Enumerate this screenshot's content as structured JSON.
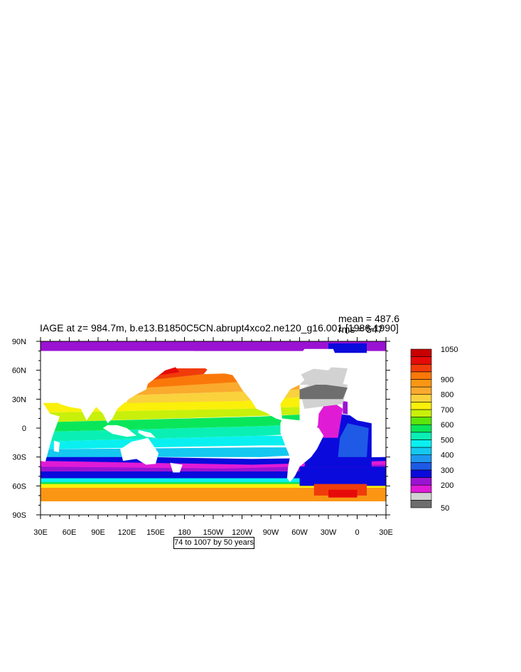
{
  "header": {
    "title": "IAGE at z= 984.7m, b.e13.B1850C5CN.abrupt4xco2.ne120_g16.001 [1986-1990]",
    "mean": "mean = 487.6",
    "rms": "rms = 547"
  },
  "info_label": "74 to 1007 by 50 years",
  "colors": {
    "land": "#ffffff",
    "frame": "#000000"
  },
  "chart_data": {
    "type": "heatmap",
    "title": "IAGE at z= 984.7m, b.e13.B1850C5CN.abrupt4xco2.ne120_g16.001 [1986-1990]",
    "x_ticks": [
      "30E",
      "60E",
      "90E",
      "120E",
      "150E",
      "180",
      "150W",
      "120W",
      "90W",
      "60W",
      "30W",
      "0",
      "30E"
    ],
    "y_ticks": [
      "90N",
      "60N",
      "30N",
      "0",
      "30S",
      "60S",
      "90S"
    ],
    "xlim": [
      30,
      390
    ],
    "ylim": [
      -90,
      90
    ],
    "units": "years",
    "colorbar": {
      "labels": [
        "1050",
        "900",
        "800",
        "700",
        "600",
        "500",
        "400",
        "300",
        "200",
        "50"
      ],
      "levels": [
        50,
        100,
        150,
        200,
        250,
        300,
        350,
        400,
        450,
        500,
        550,
        600,
        650,
        700,
        750,
        800,
        850,
        900,
        950,
        1000,
        1050
      ],
      "colors": [
        "#6e6e6e",
        "#d2d2d2",
        "#e01bd6",
        "#9b13d2",
        "#0a0adc",
        "#1e5ae6",
        "#1e96f0",
        "#14c8f0",
        "#0af0f0",
        "#0af0b4",
        "#0ae65a",
        "#5ae60a",
        "#c8f00a",
        "#faf00a",
        "#fad23c",
        "#faaa2d",
        "#fa9614",
        "#fa780a",
        "#f03c0a",
        "#e60a0a",
        "#c80000"
      ]
    },
    "stats": {
      "mean": 487.6,
      "rms": 547
    }
  }
}
